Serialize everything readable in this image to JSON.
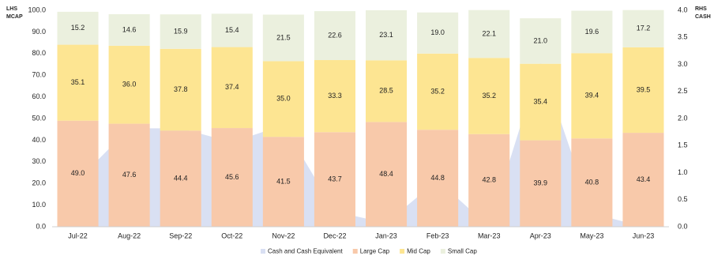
{
  "chart_data": {
    "type": "stacked_bar",
    "y_label_top": "LHS",
    "y_label": "MCAP",
    "y2_label_top": "RHS",
    "y2_label": "CASH",
    "categories": [
      "Jul-22",
      "Aug-22",
      "Sep-22",
      "Oct-22",
      "Nov-22",
      "Dec-22",
      "Jan-23",
      "Feb-23",
      "Mar-23",
      "Apr-23",
      "May-23",
      "Jun-23"
    ],
    "series": [
      {
        "name": "Cash and Cash Equivalent",
        "type": "area",
        "axis": "y2",
        "color": "#d9e0f3",
        "values": [
          0.86,
          1.82,
          1.82,
          1.56,
          1.88,
          0.28,
          0.07,
          0.86,
          0.0,
          3.05,
          0.25,
          0.0
        ]
      },
      {
        "name": "Large Cap",
        "type": "bar",
        "color": "#f8c9aa",
        "values": [
          49.0,
          47.6,
          44.4,
          45.6,
          41.5,
          43.7,
          48.4,
          44.8,
          42.8,
          39.9,
          40.8,
          43.4
        ],
        "value_labels": [
          "49.0",
          "47.6",
          "44.4",
          "45.6",
          "41.5",
          "43.7",
          "48.4",
          "44.8",
          "42.8",
          "39.9",
          "40.8",
          "43.4"
        ]
      },
      {
        "name": "Mid Cap",
        "type": "bar",
        "color": "#fde592",
        "values": [
          35.1,
          36.0,
          37.8,
          37.4,
          35.0,
          33.3,
          28.5,
          35.2,
          35.2,
          35.4,
          39.4,
          39.5
        ],
        "value_labels": [
          "35.1",
          "36.0",
          "37.8",
          "37.4",
          "35.0",
          "33.3",
          "28.5",
          "35.2",
          "35.2",
          "35.4",
          "39.4",
          "39.5"
        ]
      },
      {
        "name": "Small Cap",
        "type": "bar",
        "color": "#ebf0de",
        "values": [
          15.2,
          14.6,
          15.9,
          15.4,
          21.5,
          22.6,
          23.1,
          19.0,
          22.1,
          21.0,
          19.6,
          17.2
        ],
        "value_labels": [
          "15.2",
          "14.6",
          "15.9",
          "15.4",
          "21.5",
          "22.6",
          "23.1",
          "19.0",
          "22.1",
          "21.0",
          "19.6",
          "17.2"
        ]
      }
    ],
    "ylim": [
      0,
      100
    ],
    "yticks": [
      {
        "value": 0,
        "label": "0.0"
      },
      {
        "value": 10,
        "label": "10.0"
      },
      {
        "value": 20,
        "label": "20.0"
      },
      {
        "value": 30,
        "label": "30.0"
      },
      {
        "value": 40,
        "label": "40.0"
      },
      {
        "value": 50,
        "label": "50.0"
      },
      {
        "value": 60,
        "label": "60.0"
      },
      {
        "value": 70,
        "label": "70.0"
      },
      {
        "value": 80,
        "label": "80.0"
      },
      {
        "value": 90,
        "label": "90.0"
      },
      {
        "value": 100,
        "label": "100.0"
      }
    ],
    "y2lim": [
      0,
      4
    ],
    "y2ticks": [
      {
        "value": 0,
        "label": "0.0"
      },
      {
        "value": 0.5,
        "label": "0.5"
      },
      {
        "value": 1,
        "label": "1.0"
      },
      {
        "value": 1.5,
        "label": "1.5"
      },
      {
        "value": 2,
        "label": "2.0"
      },
      {
        "value": 2.5,
        "label": "2.5"
      },
      {
        "value": 3,
        "label": "3.0"
      },
      {
        "value": 3.5,
        "label": "3.5"
      },
      {
        "value": 4,
        "label": "4.0"
      }
    ],
    "legend": "bottom"
  }
}
